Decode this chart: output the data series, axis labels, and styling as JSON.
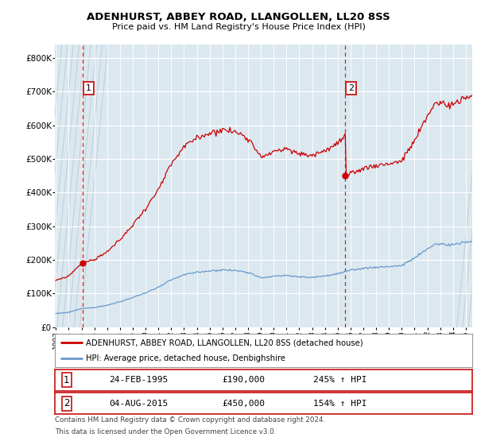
{
  "title": "ADENHURST, ABBEY ROAD, LLANGOLLEN, LL20 8SS",
  "subtitle": "Price paid vs. HM Land Registry's House Price Index (HPI)",
  "sale1_date_str": "24-FEB-1995",
  "sale1_year": 1995,
  "sale1_month": 2,
  "sale1_price": 190000,
  "sale2_date_str": "04-AUG-2015",
  "sale2_year": 2015,
  "sale2_month": 8,
  "sale2_price": 450000,
  "sale1_hpi": "245% ↑ HPI",
  "sale2_hpi": "154% ↑ HPI",
  "legend_red": "ADENHURST, ABBEY ROAD, LLANGOLLEN, LL20 8SS (detached house)",
  "legend_blue": "HPI: Average price, detached house, Denbighshire",
  "footer1": "Contains HM Land Registry data © Crown copyright and database right 2024.",
  "footer2": "This data is licensed under the Open Government Licence v3.0.",
  "red_color": "#cc0000",
  "blue_color": "#6699cc",
  "bg_color": "#dce8f0",
  "hatch_color": "#c0d0dc",
  "grid_color": "#ffffff",
  "ylim": [
    0,
    840000
  ],
  "yticks": [
    0,
    100000,
    200000,
    300000,
    400000,
    500000,
    600000,
    700000,
    800000
  ],
  "ytick_labels": [
    "£0",
    "£100K",
    "£200K",
    "£300K",
    "£400K",
    "£500K",
    "£600K",
    "£700K",
    "£800K"
  ],
  "xstart_year": 1993,
  "xend_year": 2025
}
